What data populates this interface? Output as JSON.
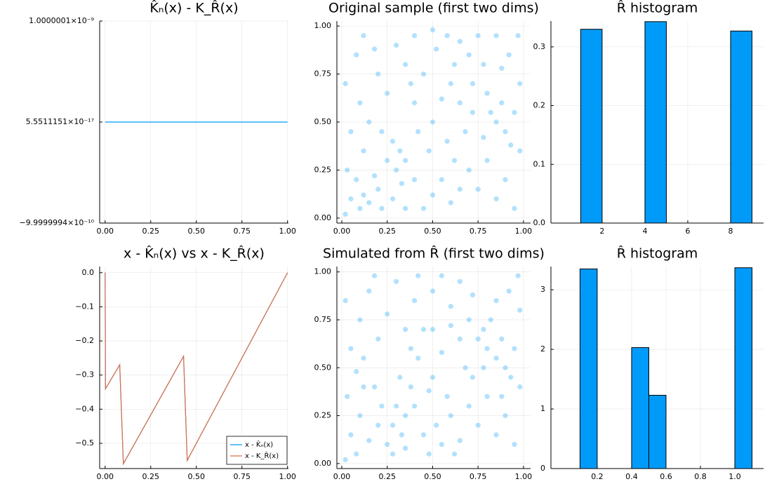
{
  "chart_data": [
    {
      "type": "line",
      "title": "K̂ₙ(x) - K_R̂(x)",
      "x": [
        0,
        1
      ],
      "series": [
        {
          "color": "#009af9",
          "values": [
            5.5511151e-17,
            5.5511151e-17
          ]
        }
      ],
      "xlim": [
        -0.03,
        1.005
      ],
      "ylim": [
        -9.9999994e-10,
        1.0000001e-09
      ],
      "xticks": [
        {
          "value": 0,
          "label": "0.00"
        },
        {
          "value": 0.25,
          "label": "0.25"
        },
        {
          "value": 0.5,
          "label": "0.50"
        },
        {
          "value": 0.75,
          "label": "0.75"
        },
        {
          "value": 1,
          "label": "1.00"
        }
      ],
      "yticks": [
        {
          "value": -9.9999994e-10,
          "label": "−9.9999994×10⁻¹⁰"
        },
        {
          "value": 5.5511151e-17,
          "label": "5.5511151×10⁻¹⁷"
        },
        {
          "value": 1.0000001e-09,
          "label": "1.0000001×10⁻⁹"
        }
      ],
      "grid": true
    },
    {
      "type": "scatter",
      "title": "Original sample (first two dims)",
      "color": "#009af9",
      "x": [
        0.05,
        0.1,
        0.12,
        0.15,
        0.08,
        0.2,
        0.03,
        0.18,
        0.25,
        0.3,
        0.32,
        0.28,
        0.35,
        0.4,
        0.22,
        0.15,
        0.05,
        0.1,
        0.02,
        0.08,
        0.12,
        0.2,
        0.25,
        0.3,
        0.35,
        0.4,
        0.42,
        0.45,
        0.5,
        0.55,
        0.6,
        0.62,
        0.58,
        0.5,
        0.55,
        0.52,
        0.5,
        0.58,
        0.62,
        0.65,
        0.7,
        0.72,
        0.75,
        0.78,
        0.8,
        0.82,
        0.85,
        0.88,
        0.9,
        0.95,
        0.98,
        0.92,
        0.85,
        0.97,
        0.7,
        0.75,
        0.8,
        0.85,
        0.9,
        0.95,
        0.98,
        0.68,
        0.72,
        0.65,
        0.45,
        0.38,
        0.48,
        0.35,
        0.28,
        0.02,
        0.4,
        0.18,
        0.6,
        0.88,
        0.93,
        0.12,
        0.22,
        0.33,
        0.78,
        0.65
      ],
      "values": [
        0.1,
        0.05,
        0.12,
        0.08,
        0.2,
        0.15,
        0.25,
        0.22,
        0.3,
        0.25,
        0.35,
        0.4,
        0.3,
        0.2,
        0.45,
        0.5,
        0.45,
        0.6,
        0.7,
        0.85,
        0.95,
        0.75,
        0.65,
        0.9,
        0.8,
        0.6,
        0.45,
        0.05,
        0.12,
        0.2,
        0.08,
        0.3,
        0.4,
        0.5,
        0.62,
        0.88,
        0.98,
        0.95,
        0.8,
        0.92,
        0.85,
        0.7,
        0.95,
        0.8,
        0.65,
        0.55,
        0.5,
        0.6,
        0.45,
        0.55,
        0.7,
        0.85,
        0.95,
        0.95,
        0.25,
        0.15,
        0.3,
        0.1,
        0.2,
        0.05,
        0.35,
        0.45,
        0.55,
        0.6,
        0.75,
        0.7,
        0.35,
        0.05,
        0.1,
        0.02,
        0.95,
        0.88,
        0.7,
        0.78,
        0.38,
        0.35,
        0.05,
        0.18,
        0.42,
        0.15
      ],
      "xlim": [
        -0.027,
        1.039
      ],
      "ylim": [
        -0.026,
        1.026
      ],
      "xticks": [
        {
          "value": 0,
          "label": "0.00"
        },
        {
          "value": 0.25,
          "label": "0.25"
        },
        {
          "value": 0.5,
          "label": "0.50"
        },
        {
          "value": 0.75,
          "label": "0.75"
        },
        {
          "value": 1,
          "label": "1.00"
        }
      ],
      "yticks": [
        {
          "value": 0,
          "label": "0.00"
        },
        {
          "value": 0.25,
          "label": "0.25"
        },
        {
          "value": 0.5,
          "label": "0.50"
        },
        {
          "value": 0.75,
          "label": "0.75"
        },
        {
          "value": 1,
          "label": "1.00"
        }
      ],
      "grid": true
    },
    {
      "type": "histogram",
      "title": "R̂ histogram",
      "color": "#009af9",
      "bins": [
        1,
        2,
        3,
        4,
        5,
        6,
        7,
        8,
        9
      ],
      "values": [
        0.33,
        0,
        0,
        0.343,
        0,
        0,
        0,
        0.327
      ],
      "xlim": [
        -0.39,
        9.54
      ],
      "ylim": [
        0,
        0.344
      ],
      "xticks": [
        2,
        4,
        6,
        8
      ],
      "yticks": [
        {
          "value": 0,
          "label": "0.0"
        },
        0.1,
        0.2,
        0.3
      ],
      "grid": true
    },
    {
      "type": "line",
      "title": "x - K̂ₙ(x) vs x - K_R̂(x)",
      "x": [
        0,
        0.002,
        0.08,
        0.1,
        0.43,
        0.45,
        1
      ],
      "series": [
        {
          "name": "x - K̂ₙ(x)",
          "color": "#009af9",
          "values": [
            0,
            -0.34,
            -0.27,
            -0.56,
            -0.245,
            -0.55,
            0
          ]
        },
        {
          "name": "x - K_R̂(x)",
          "color": "#e26f46",
          "values": [
            0,
            -0.34,
            -0.27,
            -0.56,
            -0.245,
            -0.55,
            0
          ]
        }
      ],
      "xlim": [
        -0.03,
        1.005
      ],
      "ylim": [
        -0.574,
        0.018
      ],
      "xticks": [
        {
          "value": 0,
          "label": "0.00"
        },
        {
          "value": 0.25,
          "label": "0.25"
        },
        {
          "value": 0.5,
          "label": "0.50"
        },
        {
          "value": 0.75,
          "label": "0.75"
        },
        {
          "value": 1,
          "label": "1.00"
        }
      ],
      "yticks": [
        {
          "value": 0,
          "label": "0.0"
        },
        {
          "value": -0.1,
          "label": "−0.1"
        },
        {
          "value": -0.2,
          "label": "−0.2"
        },
        {
          "value": -0.3,
          "label": "−0.3"
        },
        {
          "value": -0.4,
          "label": "−0.4"
        },
        {
          "value": -0.5,
          "label": "−0.5"
        }
      ],
      "grid": true,
      "legend": "bottom-right"
    },
    {
      "type": "scatter",
      "title": "Simulated from R̂ (first two dims)",
      "color": "#009af9",
      "x": [
        0.05,
        0.08,
        0.1,
        0.15,
        0.2,
        0.03,
        0.25,
        0.3,
        0.35,
        0.38,
        0.32,
        0.28,
        0.4,
        0.45,
        0.18,
        0.12,
        0.05,
        0.1,
        0.02,
        0.15,
        0.2,
        0.25,
        0.3,
        0.35,
        0.4,
        0.42,
        0.48,
        0.52,
        0.55,
        0.6,
        0.62,
        0.58,
        0.5,
        0.55,
        0.5,
        0.55,
        0.6,
        0.65,
        0.7,
        0.72,
        0.75,
        0.78,
        0.8,
        0.82,
        0.85,
        0.88,
        0.9,
        0.95,
        0.98,
        0.92,
        0.85,
        0.97,
        0.7,
        0.75,
        0.8,
        0.85,
        0.9,
        0.95,
        0.98,
        0.68,
        0.72,
        0.65,
        0.45,
        0.38,
        0.48,
        0.35,
        0.28,
        0.02,
        0.42,
        0.18,
        0.6,
        0.88,
        0.93,
        0.12,
        0.22,
        0.33,
        0.78,
        0.65,
        0.08,
        0.5
      ],
      "values": [
        0.15,
        0.05,
        0.25,
        0.12,
        0.2,
        0.35,
        0.1,
        0.3,
        0.25,
        0.4,
        0.45,
        0.2,
        0.3,
        0.15,
        0.4,
        0.55,
        0.6,
        0.75,
        0.85,
        0.9,
        0.65,
        0.78,
        0.95,
        0.7,
        0.85,
        0.55,
        0.05,
        0.2,
        0.1,
        0.25,
        0.05,
        0.35,
        0.45,
        0.58,
        0.9,
        0.98,
        0.82,
        0.95,
        0.75,
        0.88,
        0.65,
        0.7,
        0.6,
        0.75,
        0.55,
        0.65,
        0.5,
        0.6,
        0.8,
        0.9,
        0.85,
        0.98,
        0.3,
        0.2,
        0.35,
        0.15,
        0.25,
        0.1,
        0.4,
        0.5,
        0.45,
        0.65,
        0.7,
        0.6,
        0.38,
        0.08,
        0.05,
        0.02,
        0.98,
        0.98,
        0.72,
        0.35,
        0.45,
        0.4,
        0.3,
        0.15,
        0.5,
        0.12,
        0.48,
        0.7
      ],
      "xlim": [
        -0.027,
        1.039
      ],
      "ylim": [
        -0.026,
        1.028
      ],
      "xticks": [
        {
          "value": 0,
          "label": "0.00"
        },
        {
          "value": 0.25,
          "label": "0.25"
        },
        {
          "value": 0.5,
          "label": "0.50"
        },
        {
          "value": 0.75,
          "label": "0.75"
        },
        {
          "value": 1,
          "label": "1.00"
        }
      ],
      "yticks": [
        {
          "value": 0,
          "label": "0.00"
        },
        {
          "value": 0.25,
          "label": "0.25"
        },
        {
          "value": 0.5,
          "label": "0.50"
        },
        {
          "value": 0.75,
          "label": "0.75"
        },
        {
          "value": 1,
          "label": "1.00"
        }
      ],
      "grid": true
    },
    {
      "type": "histogram",
      "title": "R̂ histogram",
      "color": "#009af9",
      "bins": [
        0.1,
        0.2,
        0.3,
        0.4,
        0.5,
        0.6,
        0.7,
        0.8,
        0.9,
        1.0,
        1.1
      ],
      "values": [
        3.35,
        0,
        0,
        2.03,
        1.23,
        0,
        0,
        0,
        0,
        3.37
      ],
      "xlim": [
        -0.069,
        1.167
      ],
      "ylim": [
        0,
        3.39
      ],
      "xticks": [
        0.2,
        0.4,
        0.6,
        0.8,
        {
          "value": 1,
          "label": "1.0"
        }
      ],
      "yticks": [
        0,
        1,
        2,
        3
      ],
      "grid": true
    }
  ]
}
